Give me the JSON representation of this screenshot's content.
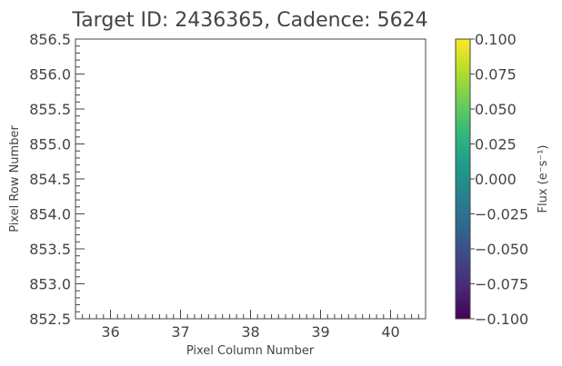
{
  "chart_data": {
    "type": "heatmap",
    "title": "Target ID: 2436365, Cadence: 5624",
    "xlabel": "Pixel Column Number",
    "ylabel": "Pixel Row Number",
    "xlim": [
      35.5,
      40.5
    ],
    "ylim": [
      852.5,
      856.5
    ],
    "x_ticks": [
      36,
      37,
      38,
      39,
      40
    ],
    "x_tick_labels": [
      "36",
      "37",
      "38",
      "39",
      "40"
    ],
    "y_ticks": [
      852.5,
      853.0,
      853.5,
      854.0,
      854.5,
      855.0,
      855.5,
      856.0,
      856.5
    ],
    "y_tick_labels": [
      "852.5",
      "853.0",
      "853.5",
      "854.0",
      "854.5",
      "855.0",
      "855.5",
      "856.0",
      "856.5"
    ],
    "values": [],
    "grid": false,
    "colorbar": {
      "label": "Flux (e⁻s⁻¹)",
      "range": [
        -0.1,
        0.1
      ],
      "colormap": "viridis",
      "ticks": [
        -0.1,
        -0.075,
        -0.05,
        -0.025,
        0.0,
        0.025,
        0.05,
        0.075,
        0.1
      ],
      "tick_labels": [
        "−0.100",
        "−0.075",
        "−0.050",
        "−0.025",
        "0.000",
        "0.025",
        "0.050",
        "0.075",
        "0.100"
      ]
    },
    "colors": {
      "text": "#444444",
      "axis": "#444444",
      "viridis_stops": [
        "#440154",
        "#482878",
        "#3e4989",
        "#31688e",
        "#26828e",
        "#1f9e89",
        "#35b779",
        "#6ece58",
        "#b5de2b",
        "#fde725"
      ]
    }
  }
}
